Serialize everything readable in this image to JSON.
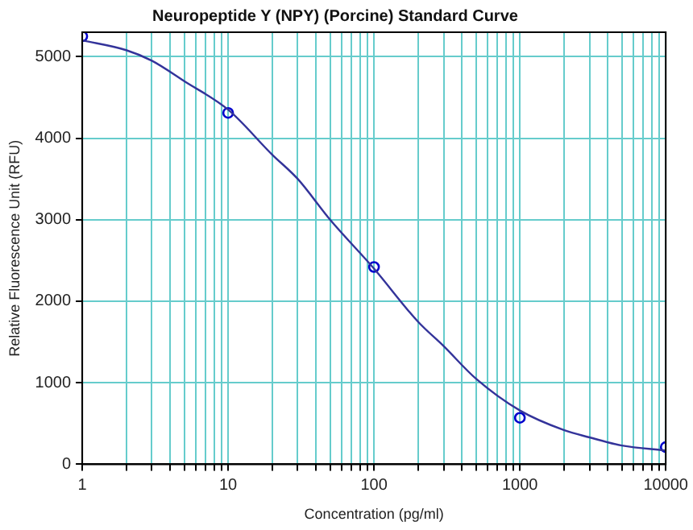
{
  "chart_data": {
    "type": "scatter",
    "title": "Neuropeptide Y (NPY) (Porcine) Standard Curve",
    "xlabel": "Concentration (pg/ml)",
    "ylabel": "Relative Fluorescence Unit (RFU)",
    "log": "x",
    "grid": true,
    "legend": false,
    "xlim": [
      1,
      10000
    ],
    "ylim": [
      0,
      5300
    ],
    "xticks": [
      1,
      {
        "value": 2,
        "label": null
      },
      {
        "value": 3,
        "label": null
      },
      {
        "value": 4,
        "label": null
      },
      {
        "value": 5,
        "label": null
      },
      {
        "value": 6,
        "label": null
      },
      {
        "value": 7,
        "label": null
      },
      {
        "value": 8,
        "label": null
      },
      {
        "value": 9,
        "label": null
      },
      10,
      {
        "value": 20,
        "label": null
      },
      {
        "value": 30,
        "label": null
      },
      {
        "value": 40,
        "label": null
      },
      {
        "value": 50,
        "label": null
      },
      {
        "value": 60,
        "label": null
      },
      {
        "value": 70,
        "label": null
      },
      {
        "value": 80,
        "label": null
      },
      {
        "value": 90,
        "label": null
      },
      100,
      {
        "value": 200,
        "label": null
      },
      {
        "value": 300,
        "label": null
      },
      {
        "value": 400,
        "label": null
      },
      {
        "value": 500,
        "label": null
      },
      {
        "value": 600,
        "label": null
      },
      {
        "value": 700,
        "label": null
      },
      {
        "value": 800,
        "label": null
      },
      {
        "value": 900,
        "label": null
      },
      1000,
      {
        "value": 2000,
        "label": null
      },
      {
        "value": 3000,
        "label": null
      },
      {
        "value": 4000,
        "label": null
      },
      {
        "value": 5000,
        "label": null
      },
      {
        "value": 6000,
        "label": null
      },
      {
        "value": 7000,
        "label": null
      },
      {
        "value": 8000,
        "label": null
      },
      {
        "value": 9000,
        "label": null
      },
      10000
    ],
    "yticks": [
      0,
      1000,
      2000,
      3000,
      4000,
      5000
    ],
    "series": [
      {
        "type": "line",
        "marker": "none",
        "color": "#33339a",
        "x": [
          1,
          2,
          3,
          5,
          10,
          20,
          30,
          50,
          100,
          200,
          300,
          500,
          1000,
          2000,
          3000,
          5000,
          10000
        ],
        "values": [
          5200,
          5080,
          4950,
          4700,
          4350,
          3800,
          3500,
          3000,
          2400,
          1750,
          1450,
          1050,
          660,
          420,
          330,
          230,
          170
        ]
      },
      {
        "type": "scatter",
        "marker": "circle",
        "color": "#0000cc",
        "x": [
          1,
          10,
          100,
          1000,
          10000
        ],
        "values": [
          5250,
          4310,
          2420,
          570,
          210
        ]
      }
    ]
  }
}
